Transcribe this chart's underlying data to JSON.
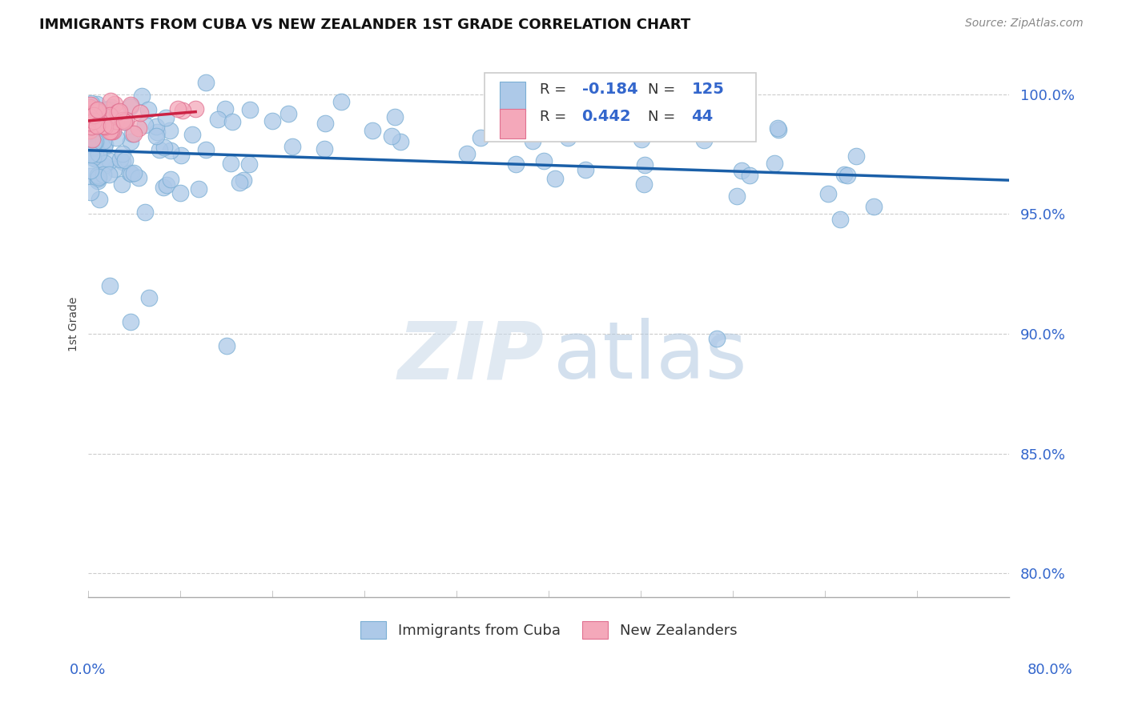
{
  "title": "IMMIGRANTS FROM CUBA VS NEW ZEALANDER 1ST GRADE CORRELATION CHART",
  "source": "Source: ZipAtlas.com",
  "ylabel": "1st Grade",
  "ylabel_values": [
    80.0,
    85.0,
    90.0,
    95.0,
    100.0
  ],
  "xlim": [
    0.0,
    80.0
  ],
  "ylim": [
    79.0,
    101.8
  ],
  "blue_R": -0.184,
  "blue_N": 125,
  "pink_R": 0.442,
  "pink_N": 44,
  "blue_color": "#adc9e8",
  "blue_edge_color": "#7aaed4",
  "pink_color": "#f4a8ba",
  "pink_edge_color": "#e07090",
  "blue_line_color": "#1a5fa8",
  "pink_line_color": "#cc2244",
  "legend_label_blue": "Immigrants from Cuba",
  "legend_label_pink": "New Zealanders",
  "r_n_text_color": "#3366cc",
  "r_label_color": "#333333",
  "ytick_color": "#3366cc",
  "xlabel_color": "#3366cc",
  "source_color": "#888888",
  "watermark_zip_color": "#c8d8e8",
  "watermark_atlas_color": "#b0c8e0"
}
